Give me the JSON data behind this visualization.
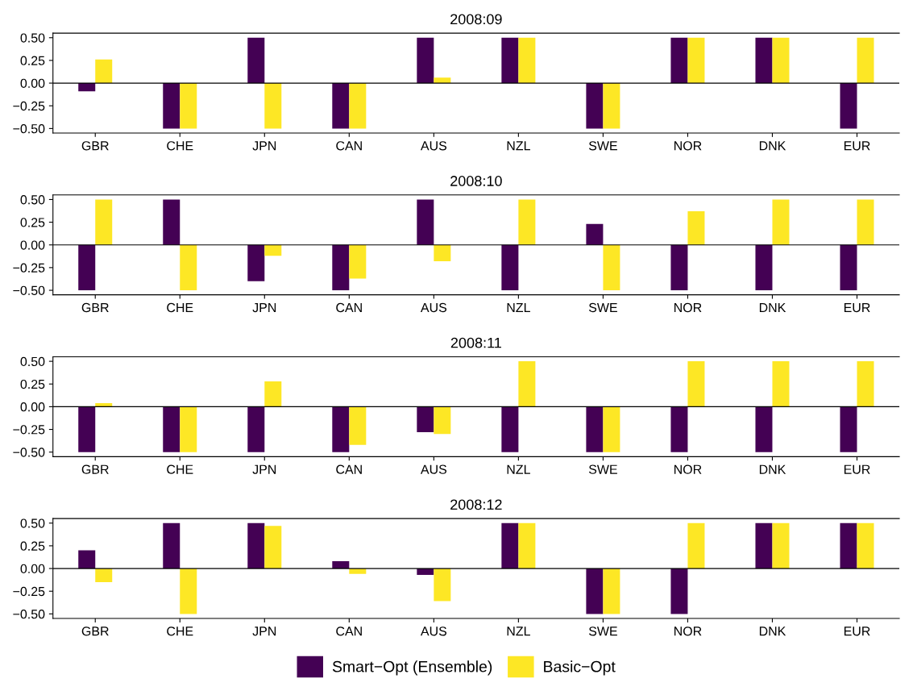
{
  "chart_data": [
    {
      "type": "bar",
      "title": "2008:09",
      "categories": [
        "GBR",
        "CHE",
        "JPN",
        "CAN",
        "AUS",
        "NZL",
        "SWE",
        "NOR",
        "DNK",
        "EUR"
      ],
      "ylim": [
        -0.55,
        0.55
      ],
      "yticks": [
        {
          "value": -0.5,
          "label": "−0.50"
        },
        {
          "value": -0.25,
          "label": "−0.25"
        },
        {
          "value": 0,
          "label": "0.00"
        },
        {
          "value": 0.25,
          "label": "0.25"
        },
        {
          "value": 0.5,
          "label": "0.50"
        }
      ],
      "ref_lines": [
        {
          "axis": "y",
          "value": 0,
          "color": "#000000"
        }
      ],
      "legend": "bottom",
      "series": [
        {
          "name": "Smart−Opt (Ensemble)",
          "color": "#440154",
          "values": [
            -0.09,
            -0.5,
            0.5,
            -0.5,
            0.5,
            0.5,
            -0.5,
            0.5,
            0.5,
            -0.5
          ]
        },
        {
          "name": "Basic−Opt",
          "color": "#fde725",
          "values": [
            0.26,
            -0.5,
            -0.5,
            -0.5,
            0.06,
            0.5,
            -0.5,
            0.5,
            0.5,
            0.5
          ]
        }
      ]
    },
    {
      "type": "bar",
      "title": "2008:10",
      "categories": [
        "GBR",
        "CHE",
        "JPN",
        "CAN",
        "AUS",
        "NZL",
        "SWE",
        "NOR",
        "DNK",
        "EUR"
      ],
      "ylim": [
        -0.55,
        0.55
      ],
      "yticks": [
        {
          "value": -0.5,
          "label": "−0.50"
        },
        {
          "value": -0.25,
          "label": "−0.25"
        },
        {
          "value": 0,
          "label": "0.00"
        },
        {
          "value": 0.25,
          "label": "0.25"
        },
        {
          "value": 0.5,
          "label": "0.50"
        }
      ],
      "ref_lines": [
        {
          "axis": "y",
          "value": 0,
          "color": "#000000"
        }
      ],
      "series": [
        {
          "color": "#440154",
          "values": [
            -0.5,
            0.5,
            -0.4,
            -0.5,
            0.5,
            -0.5,
            0.23,
            -0.5,
            -0.5,
            -0.5
          ]
        },
        {
          "color": "#fde725",
          "values": [
            0.5,
            -0.5,
            -0.12,
            -0.37,
            -0.18,
            0.5,
            -0.5,
            0.37,
            0.5,
            0.5
          ]
        }
      ]
    },
    {
      "type": "bar",
      "title": "2008:11",
      "categories": [
        "GBR",
        "CHE",
        "JPN",
        "CAN",
        "AUS",
        "NZL",
        "SWE",
        "NOR",
        "DNK",
        "EUR"
      ],
      "ylim": [
        -0.55,
        0.55
      ],
      "yticks": [
        {
          "value": -0.5,
          "label": "−0.50"
        },
        {
          "value": -0.25,
          "label": "−0.25"
        },
        {
          "value": 0,
          "label": "0.00"
        },
        {
          "value": 0.25,
          "label": "0.25"
        },
        {
          "value": 0.5,
          "label": "0.50"
        }
      ],
      "ref_lines": [
        {
          "axis": "y",
          "value": 0,
          "color": "#000000"
        }
      ],
      "series": [
        {
          "color": "#440154",
          "values": [
            -0.5,
            -0.5,
            -0.5,
            -0.5,
            -0.28,
            -0.5,
            -0.5,
            -0.5,
            -0.5,
            -0.5
          ]
        },
        {
          "color": "#fde725",
          "values": [
            0.04,
            -0.5,
            0.28,
            -0.42,
            -0.3,
            0.5,
            -0.5,
            0.5,
            0.5,
            0.5
          ]
        }
      ]
    },
    {
      "type": "bar",
      "title": "2008:12",
      "categories": [
        "GBR",
        "CHE",
        "JPN",
        "CAN",
        "AUS",
        "NZL",
        "SWE",
        "NOR",
        "DNK",
        "EUR"
      ],
      "ylim": [
        -0.55,
        0.55
      ],
      "yticks": [
        {
          "value": -0.5,
          "label": "−0.50"
        },
        {
          "value": -0.25,
          "label": "−0.25"
        },
        {
          "value": 0,
          "label": "0.00"
        },
        {
          "value": 0.25,
          "label": "0.25"
        },
        {
          "value": 0.5,
          "label": "0.50"
        }
      ],
      "ref_lines": [
        {
          "axis": "y",
          "value": 0,
          "color": "#000000"
        }
      ],
      "series": [
        {
          "color": "#440154",
          "values": [
            0.2,
            0.5,
            0.5,
            0.08,
            -0.07,
            0.5,
            -0.5,
            -0.5,
            0.5,
            0.5
          ]
        },
        {
          "color": "#fde725",
          "values": [
            -0.15,
            -0.5,
            0.47,
            -0.06,
            -0.36,
            0.5,
            -0.5,
            0.5,
            0.5,
            0.5
          ]
        }
      ]
    }
  ]
}
